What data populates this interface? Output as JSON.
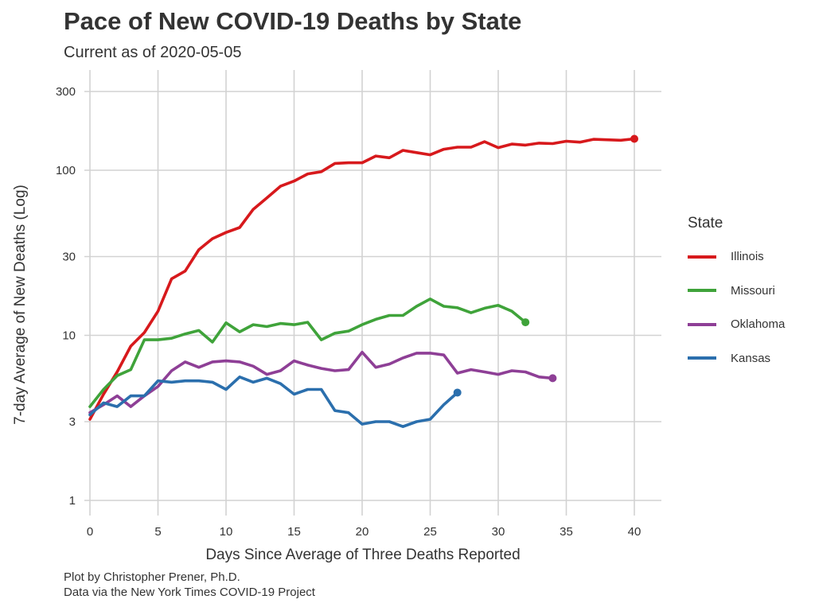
{
  "title": "Pace of New COVID-19 Deaths by State",
  "subtitle": "Current as of 2020-05-05",
  "caption": [
    "Plot by Christopher Prener, Ph.D.",
    "Data via the New York Times COVID-19 Project"
  ],
  "chart_data": {
    "type": "line",
    "xlabel": "Days Since Average of Three Deaths Reported",
    "ylabel": "7-day Average of New Deaths (Log)",
    "y_scale": "log10",
    "xlim": [
      -0.5,
      42
    ],
    "ylim": [
      0.8,
      400
    ],
    "x_ticks": [
      0,
      5,
      10,
      15,
      20,
      25,
      30,
      35,
      40
    ],
    "y_ticks": [
      1,
      3,
      10,
      30,
      100,
      300
    ],
    "grid": true,
    "legend": {
      "title": "State",
      "position": "right"
    },
    "series": [
      {
        "name": "Illinois",
        "color": "#d7191c",
        "x": [
          0,
          1,
          2,
          3,
          4,
          5,
          6,
          7,
          8,
          9,
          10,
          11,
          12,
          13,
          14,
          15,
          16,
          17,
          18,
          19,
          20,
          21,
          22,
          23,
          24,
          25,
          26,
          27,
          28,
          29,
          30,
          31,
          32,
          33,
          34,
          35,
          36,
          37,
          38,
          39,
          40
        ],
        "y": [
          3.1,
          4.4,
          6.0,
          8.6,
          10.4,
          14.0,
          22.0,
          24.5,
          33.0,
          38.5,
          42.0,
          45.0,
          58.0,
          68.0,
          80.0,
          86.0,
          95.0,
          98.0,
          110,
          111,
          111,
          122,
          119,
          132,
          128,
          124,
          134,
          138,
          138,
          149,
          137,
          144,
          142,
          146,
          145,
          150,
          148,
          154,
          153,
          152,
          155
        ],
        "end_marker": true
      },
      {
        "name": "Missouri",
        "color": "#3fa33a",
        "x": [
          0,
          1,
          2,
          3,
          4,
          5,
          6,
          7,
          8,
          9,
          10,
          11,
          12,
          13,
          14,
          15,
          16,
          17,
          18,
          19,
          20,
          21,
          22,
          23,
          24,
          25,
          26,
          27,
          28,
          29,
          30,
          31,
          32
        ],
        "y": [
          3.7,
          4.7,
          5.7,
          6.2,
          9.4,
          9.4,
          9.6,
          10.2,
          10.7,
          9.1,
          11.9,
          10.5,
          11.6,
          11.3,
          11.8,
          11.6,
          12.0,
          9.4,
          10.3,
          10.6,
          11.6,
          12.5,
          13.2,
          13.2,
          15.0,
          16.6,
          15.0,
          14.7,
          13.7,
          14.6,
          15.2,
          14.0,
          12.0
        ],
        "end_marker": true
      },
      {
        "name": "Oklahoma",
        "color": "#8e3f96",
        "x": [
          0,
          1,
          2,
          3,
          4,
          5,
          6,
          7,
          8,
          9,
          10,
          11,
          12,
          13,
          14,
          15,
          16,
          17,
          18,
          19,
          20,
          21,
          22,
          23,
          24,
          25,
          26,
          27,
          28,
          29,
          30,
          31,
          32,
          33,
          34
        ],
        "y": [
          3.4,
          3.8,
          4.3,
          3.7,
          4.3,
          4.9,
          6.1,
          6.9,
          6.4,
          6.9,
          7.0,
          6.9,
          6.5,
          5.8,
          6.1,
          7.0,
          6.6,
          6.3,
          6.1,
          6.2,
          7.9,
          6.4,
          6.7,
          7.3,
          7.8,
          7.8,
          7.6,
          5.9,
          6.2,
          6.0,
          5.8,
          6.1,
          6.0,
          5.6,
          5.5
        ],
        "end_marker": true
      },
      {
        "name": "Kansas",
        "color": "#2b6fad",
        "x": [
          0,
          1,
          2,
          3,
          4,
          5,
          6,
          7,
          8,
          9,
          10,
          11,
          12,
          13,
          14,
          15,
          16,
          17,
          18,
          19,
          20,
          21,
          22,
          23,
          24,
          25,
          26,
          27
        ],
        "y": [
          3.3,
          3.9,
          3.7,
          4.3,
          4.3,
          5.3,
          5.2,
          5.3,
          5.3,
          5.2,
          4.7,
          5.6,
          5.2,
          5.5,
          5.1,
          4.4,
          4.7,
          4.7,
          3.5,
          3.4,
          2.9,
          3.0,
          3.0,
          2.8,
          3.0,
          3.1,
          3.8,
          4.5
        ],
        "end_marker": true
      }
    ]
  }
}
